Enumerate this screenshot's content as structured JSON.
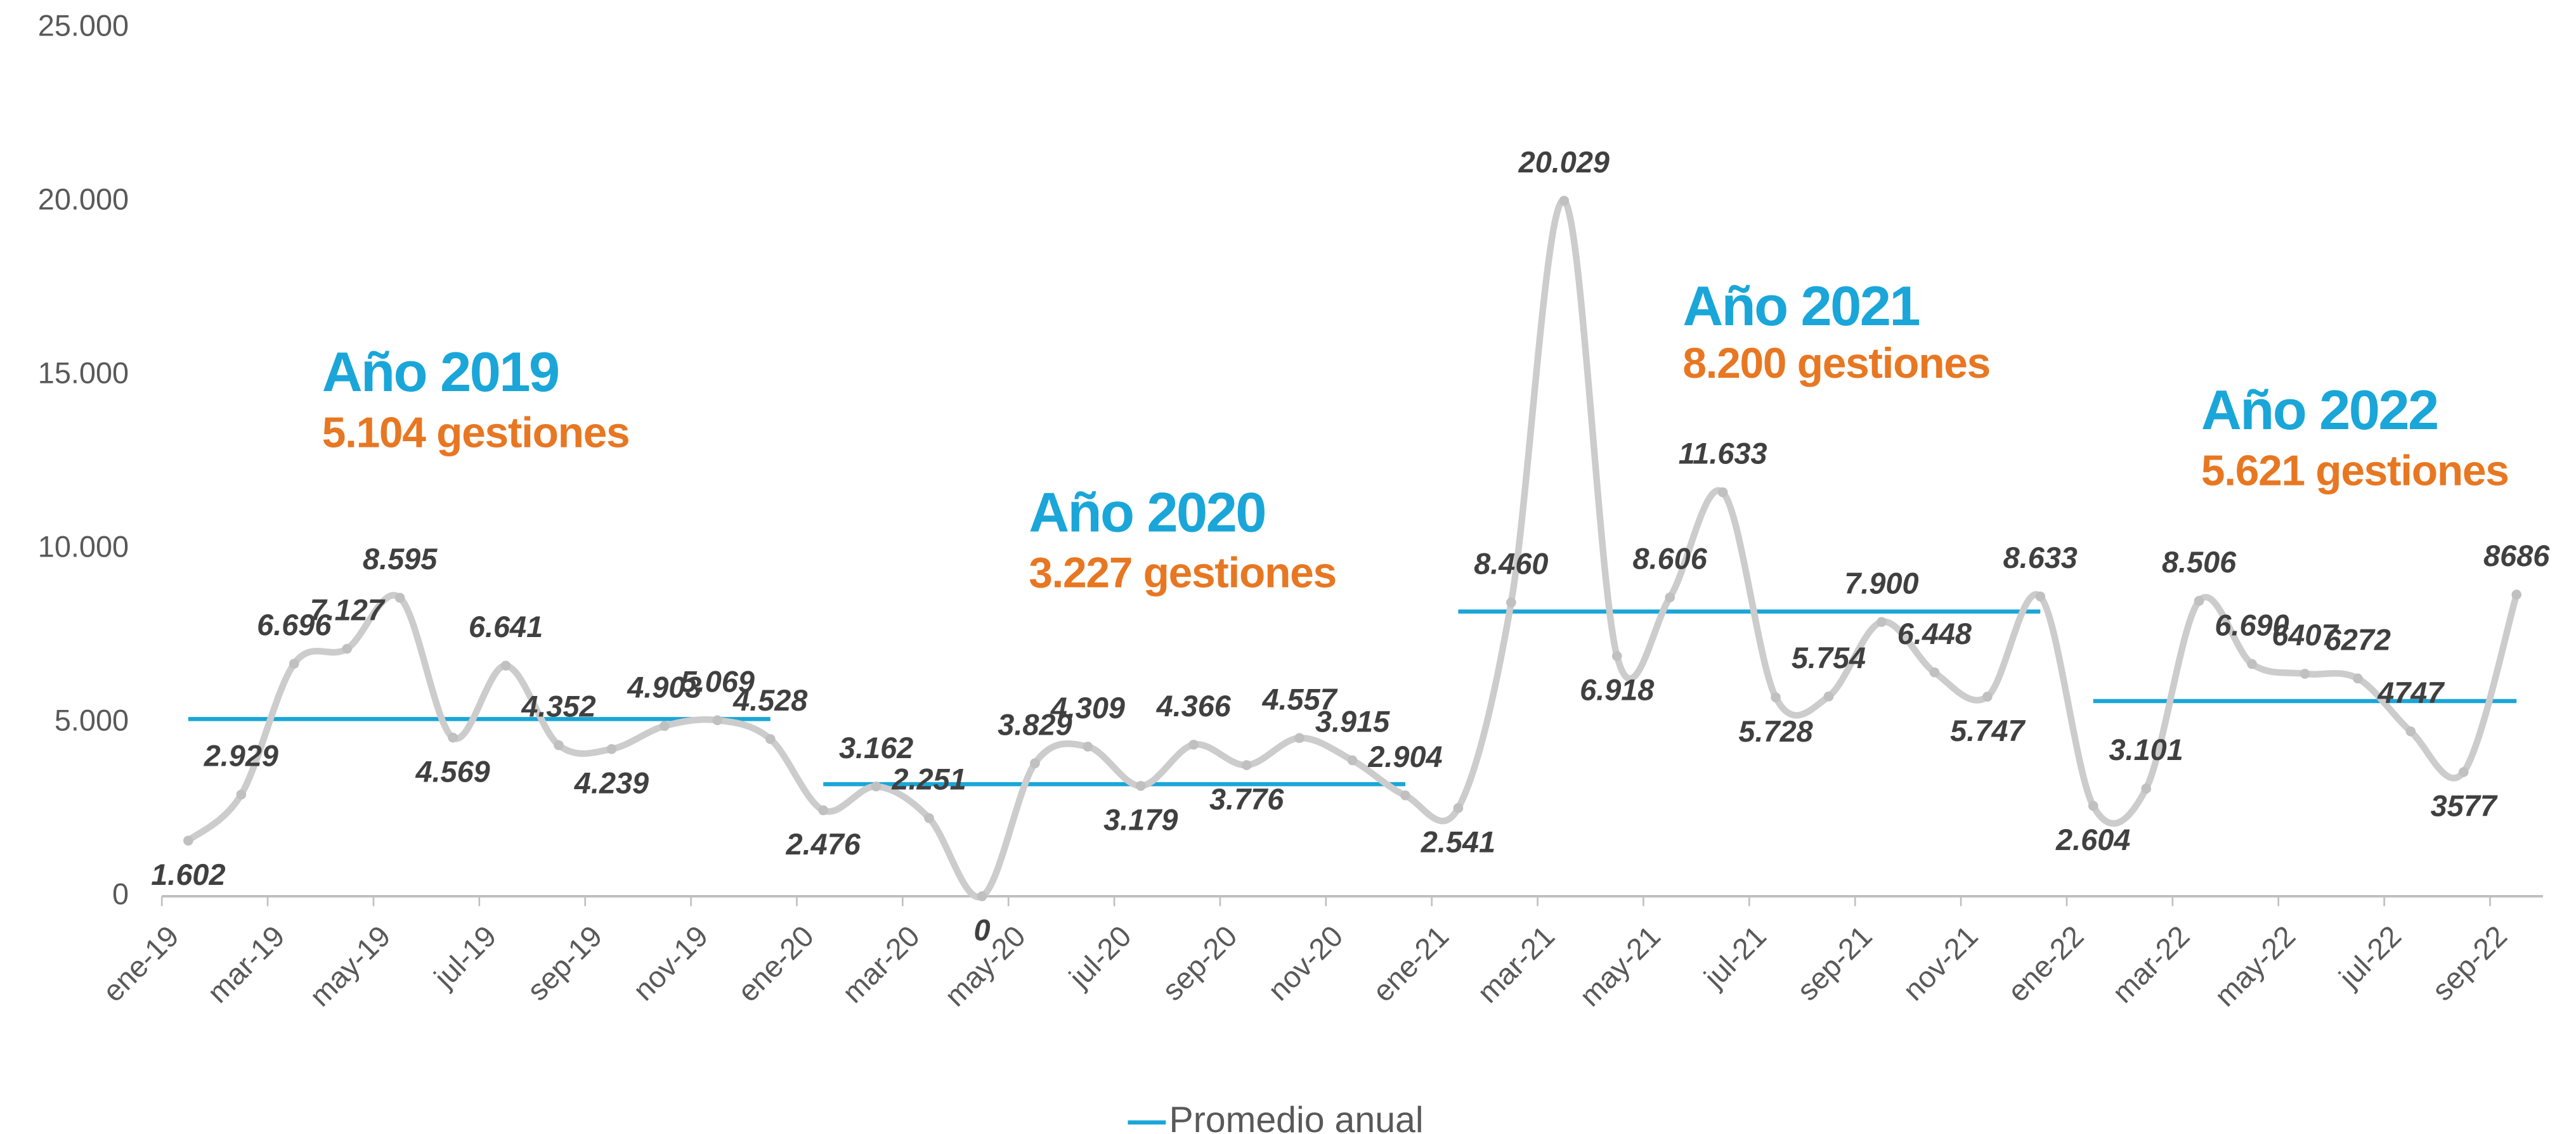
{
  "chart_data": {
    "type": "line",
    "categories": [
      "ene-19",
      null,
      "mar-19",
      null,
      "may-19",
      null,
      "jul-19",
      null,
      "sep-19",
      null,
      "nov-19",
      null,
      "ene-20",
      null,
      "mar-20",
      null,
      "may-20",
      null,
      "jul-20",
      null,
      "sep-20",
      null,
      "nov-20",
      null,
      "ene-21",
      null,
      "mar-21",
      null,
      "may-21",
      null,
      "jul-21",
      null,
      "sep-21",
      null,
      "nov-21",
      null,
      "ene-22",
      null,
      "mar-22",
      null,
      "may-22",
      null,
      "jul-22",
      null,
      "sep-22"
    ],
    "values": [
      1602,
      2929,
      6696,
      7127,
      8595,
      4569,
      6641,
      4352,
      4239,
      4903,
      5069,
      4528,
      2476,
      3162,
      2251,
      0,
      3829,
      4309,
      3179,
      4366,
      3776,
      4557,
      3915,
      2904,
      2541,
      8460,
      20029,
      6918,
      8606,
      11633,
      5728,
      5754,
      7900,
      6448,
      5747,
      8633,
      2604,
      3101,
      8506,
      6690,
      6407,
      6272,
      4747,
      3577,
      8686
    ],
    "value_labels": [
      "1.602",
      "2.929",
      "6.696",
      "7.127",
      "8.595",
      "4.569",
      "6.641",
      "4.352",
      "4.239",
      "4.903",
      "5.069",
      "4.528",
      "2.476",
      "3.162",
      "2.251",
      "0",
      "3.829",
      "4.309",
      "3.179",
      "4.366",
      "3.776",
      "4.557",
      "3.915",
      "2.904",
      "2.541",
      "8.460",
      "20.029",
      "6.918",
      "8.606",
      "11.633",
      "5.728",
      "5.754",
      "7.900",
      "6.448",
      "5.747",
      "8.633",
      "2.604",
      "3.101",
      "8.506",
      "6.690",
      "6407",
      "6272",
      "4747",
      "3577",
      "8686"
    ],
    "color": "#cccccc",
    "averages": {
      "name": "Promedio anual",
      "color": "#1aa6d8",
      "values": [
        5104,
        3227,
        8200,
        5621
      ],
      "titles": [
        "Año 2019",
        "Año 2020",
        "Año 2021",
        "Año 2022"
      ],
      "value_labels": [
        "5.104 gestiones",
        "3.227 gestiones",
        "8.200 gestiones",
        "5.621 gestiones"
      ]
    },
    "ylim": [
      0,
      25000
    ],
    "yticks": [
      0,
      {
        "value": 5000,
        "label": "5.000"
      },
      {
        "value": 10000,
        "label": "10.000"
      },
      {
        "value": 15000,
        "label": "15.000"
      },
      {
        "value": 20000,
        "label": "20.000"
      },
      {
        "value": 25000,
        "label": "25.000"
      }
    ],
    "grid": false
  }
}
